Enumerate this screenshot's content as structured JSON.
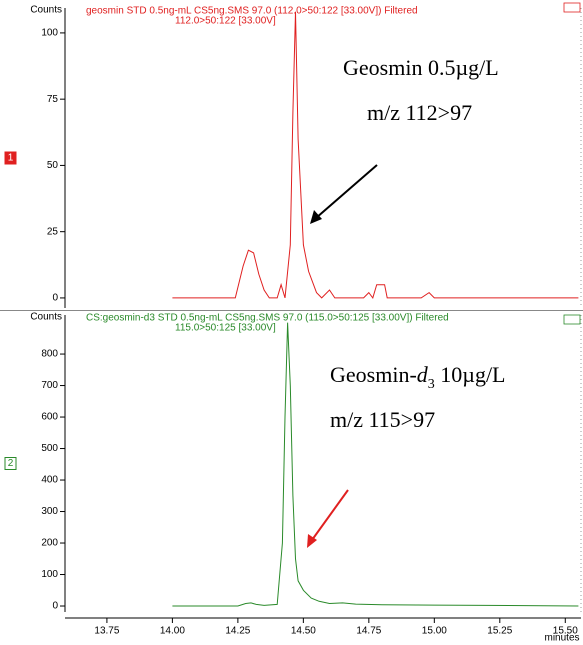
{
  "chart_data": [
    {
      "type": "line",
      "title": "geosmin STD 0.5ng-mL CS5ng.SMS 97.0 (112.0>50:122 [33.00V]) Filtered",
      "subtitle": "112.0>50:122 [33.00V]",
      "ylabel": "Counts",
      "panel_label": "1",
      "color": "#e02020",
      "annotation": [
        "Geosmin 0.5µg/L",
        "m/z 112>97"
      ],
      "xlim": [
        13.59,
        15.56
      ],
      "ylim": [
        -3.8,
        109.4
      ],
      "yticks": [
        0,
        25,
        50,
        75,
        100
      ],
      "x": [
        14.0,
        14.24,
        14.27,
        14.29,
        14.31,
        14.33,
        14.35,
        14.37,
        14.4,
        14.415,
        14.43,
        14.45,
        14.46,
        14.47,
        14.48,
        14.5,
        14.52,
        14.55,
        14.57,
        14.6,
        14.62,
        14.73,
        14.75,
        14.765,
        14.78,
        14.81,
        14.82,
        14.95,
        14.98,
        15.0,
        15.55
      ],
      "values": [
        0,
        0,
        12,
        18,
        17,
        9,
        3,
        0,
        0,
        5,
        0,
        20,
        70,
        108,
        60,
        20,
        10,
        2,
        0,
        3,
        0,
        0,
        2,
        0,
        5,
        5,
        0,
        0,
        2,
        0,
        0
      ]
    },
    {
      "type": "line",
      "title": "CS:geosmin-d3 STD 0.5ng-mL CS5ng.SMS 97.0 (115.0>50:125 [33.00V]) Filtered",
      "subtitle": "115.0>50:125 [33.00V]",
      "ylabel": "Counts",
      "panel_label": "2",
      "color": "#2a8a2a",
      "annotation_parts": [
        "Geosmin-",
        "d",
        "3",
        " 10µg/L"
      ],
      "annotation": [
        "m/z 115>97"
      ],
      "xlabel": "minutes",
      "xlim": [
        13.59,
        15.56
      ],
      "ylim": [
        -19,
        924
      ],
      "yticks": [
        0,
        100,
        200,
        300,
        400,
        500,
        600,
        700,
        800
      ],
      "xticks": [
        13.75,
        {
          "value": 14,
          "label": "14.00"
        },
        14.25,
        {
          "value": 14.5,
          "label": "14.50"
        },
        14.75,
        {
          "value": 15,
          "label": "15.00"
        },
        15.25,
        {
          "value": 15.5,
          "label": "15.50"
        }
      ],
      "x": [
        14.0,
        14.25,
        14.28,
        14.3,
        14.32,
        14.35,
        14.4,
        14.42,
        14.43,
        14.44,
        14.45,
        14.46,
        14.47,
        14.48,
        14.5,
        14.53,
        14.56,
        14.6,
        14.65,
        14.7,
        14.8,
        15.0,
        15.2,
        15.55
      ],
      "values": [
        0,
        0,
        8,
        10,
        5,
        2,
        5,
        200,
        600,
        900,
        700,
        350,
        150,
        80,
        50,
        25,
        15,
        8,
        10,
        6,
        4,
        3,
        2,
        0
      ]
    }
  ]
}
